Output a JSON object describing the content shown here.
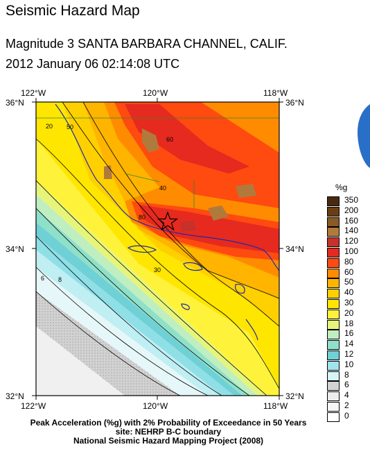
{
  "title": "Seismic Hazard Map",
  "event": {
    "line1": "Magnitude 3 SANTA BARBARA CHANNEL, CALIF.",
    "line2": "2012 January 06 02:14:08 UTC"
  },
  "map": {
    "lon_labels": [
      "122°W",
      "120°W",
      "118°W"
    ],
    "lat_labels": [
      "36°N",
      "34°N",
      "32°N"
    ],
    "contour_labels": [
      "20",
      "30",
      "40",
      "50",
      "60",
      "80",
      "6",
      "8"
    ],
    "epicenter_symbol": "star"
  },
  "legend": {
    "unit": "%g",
    "entries": [
      {
        "label": "350",
        "color": "#4a2a0f"
      },
      {
        "label": "200",
        "color": "#6b3d14"
      },
      {
        "label": "160",
        "color": "#8a5a26"
      },
      {
        "label": "140",
        "color": "#b07a3c"
      },
      {
        "label": "120",
        "color": "#c8302a"
      },
      {
        "label": "100",
        "color": "#e62a1f"
      },
      {
        "label": "80",
        "color": "#ff4a10"
      },
      {
        "label": "60",
        "color": "#ff8c00"
      },
      {
        "label": "50",
        "color": "#ffb400"
      },
      {
        "label": "40",
        "color": "#ffd000"
      },
      {
        "label": "30",
        "color": "#ffe600"
      },
      {
        "label": "20",
        "color": "#fff23a"
      },
      {
        "label": "18",
        "color": "#e6f57a"
      },
      {
        "label": "16",
        "color": "#bfeec0"
      },
      {
        "label": "14",
        "color": "#8fe0c9"
      },
      {
        "label": "12",
        "color": "#6fd0d6"
      },
      {
        "label": "10",
        "color": "#a0e4ec"
      },
      {
        "label": "8",
        "color": "#d6f4f7"
      },
      {
        "label": "6",
        "color": "#d2d2d2"
      },
      {
        "label": "4",
        "color": "#ececec"
      },
      {
        "label": "2",
        "color": "#f6f6f6"
      },
      {
        "label": "0",
        "color": "#ffffff"
      }
    ]
  },
  "footer": {
    "line1": "Peak Acceleration (%g) with 2% Probability of Exceedance in 50 Years",
    "line2": "site: NEHRP B-C boundary",
    "line3": "National Seismic Hazard Mapping Project (2008)"
  }
}
